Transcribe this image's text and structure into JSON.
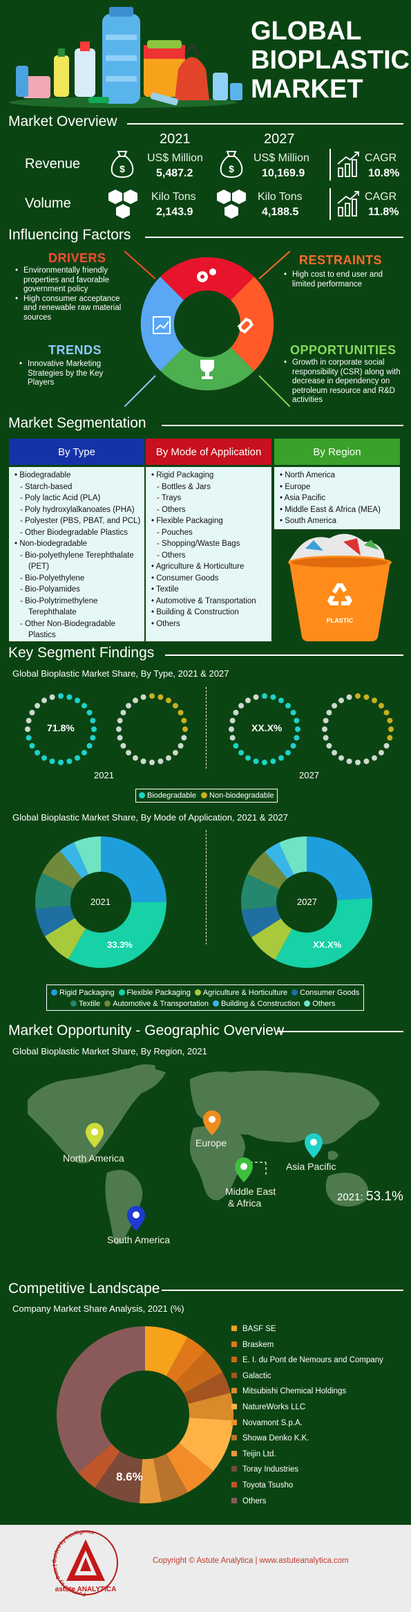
{
  "header": {
    "title_lines": [
      "GLOBAL",
      "BIOPLASTIC",
      "MARKET"
    ]
  },
  "overview": {
    "title": "Market Overview",
    "year1": "2021",
    "year2": "2027",
    "revenue": {
      "label": "Revenue",
      "unit1": "US$ Million",
      "val1": "5,487.2",
      "unit2": "US$ Million",
      "val2": "10,169.9",
      "cagr_label": "CAGR",
      "cagr": "10.8%"
    },
    "volume": {
      "label": "Volume",
      "unit1": "Kilo Tons",
      "val1": "2,143.9",
      "unit2": "Kilo Tons",
      "val2": "4,188.5",
      "cagr_label": "CAGR",
      "cagr": "11.8%"
    }
  },
  "factors": {
    "title": "Influencing Factors",
    "drivers": {
      "head": "DRIVERS",
      "items": [
        "Environmentally friendly properties and favorable government policy",
        "High consumer acceptance and renewable raw material sources"
      ]
    },
    "restraints": {
      "head": "RESTRAINTS",
      "items": [
        "High cost to end user and limited performance"
      ]
    },
    "trends": {
      "head": "TRENDS",
      "items": [
        "Innovative Marketing Strategies by the Key Players"
      ]
    },
    "opportunities": {
      "head": "OPPORTUNITIES",
      "items": [
        "Growth in corporate social responsibility (CSR) along with decrease in dependency on petroleum resource and R&D activities"
      ]
    }
  },
  "segmentation": {
    "title": "Market Segmentation",
    "by_type": {
      "head": "By Type",
      "items": [
        [
          "Biodegradable",
          0
        ],
        [
          "Starch-based",
          1
        ],
        [
          "Poly lactic Acid (PLA)",
          1
        ],
        [
          "Poly hydroxylalkanoates (PHA)",
          1
        ],
        [
          "Polyester (PBS, PBAT, and PCL)",
          1
        ],
        [
          "Other Biodegradable Plastics",
          1
        ],
        [
          "Non-biodegradable",
          0
        ],
        [
          "Bio-polyethylene Terephthalate",
          1
        ],
        [
          "(PET)",
          2
        ],
        [
          "Bio-Polyethylene",
          1
        ],
        [
          "Bio-Polyamides",
          1
        ],
        [
          "Bio-Polytrimethylene",
          1
        ],
        [
          "Terephthalate",
          2
        ],
        [
          "Other Non-Biodegradable",
          1
        ],
        [
          "Plastics",
          2
        ]
      ]
    },
    "by_application": {
      "head": "By Mode of Application",
      "items": [
        [
          "Rigid Packaging",
          0
        ],
        [
          "Bottles & Jars",
          1
        ],
        [
          "Trays",
          1
        ],
        [
          "Others",
          1
        ],
        [
          "Flexible Packaging",
          0
        ],
        [
          "Pouches",
          1
        ],
        [
          "Shopping/Waste Bags",
          1
        ],
        [
          "Others",
          1
        ],
        [
          "Agriculture & Horticulture",
          0
        ],
        [
          "Consumer Goods",
          0
        ],
        [
          "Textile",
          0
        ],
        [
          "Automotive & Transportation",
          0
        ],
        [
          "Building & Construction",
          0
        ],
        [
          "Others",
          0
        ]
      ]
    },
    "by_region": {
      "head": "By Region",
      "items": [
        [
          "North America",
          0
        ],
        [
          "Europe",
          0
        ],
        [
          "Asia Pacific",
          0
        ],
        [
          "Middle East & Africa (MEA)",
          0
        ],
        [
          "South America",
          0
        ]
      ]
    },
    "bin_label": "PLASTIC"
  },
  "findings": {
    "title": "Key Segment Findings",
    "type_subtitle": "Global Bioplastic Market Share, By Type, 2021 & 2027",
    "type_2021_label": "71.8%",
    "type_2027_label": "XX.X%",
    "year1": "2021",
    "year2": "2027",
    "type_legend": [
      "Biodegradable",
      "Non-biodegradable"
    ],
    "app_subtitle": "Global Bioplastic Market Share, By Mode of Application, 2021 & 2027",
    "app_2021_center": "2021",
    "app_2027_center": "2027",
    "app_2021_label": "33.3%",
    "app_2027_label": "XX.X%",
    "app_legend": [
      "Rigid Packaging",
      "Flexible Packaging",
      "Agriculture & Horticulture",
      "Consumer Goods",
      "Textile",
      "Automotive & Transportation",
      "Building & Construction",
      "Others"
    ]
  },
  "geo": {
    "title": "Market Opportunity - Geographic Overview",
    "subtitle": "Global Bioplastic Market Share, By Region, 2021",
    "regions": [
      "North America",
      "Europe",
      "Asia Pacific",
      "Middle East",
      "& Africa",
      "South America"
    ],
    "highlight_year": "2021:",
    "highlight_value": "53.1%"
  },
  "competition": {
    "title": "Competitive Landscape",
    "subtitle": "Company Market Share Analysis, 2021 (%)",
    "center_label": "8.6%",
    "companies": [
      "BASF SE",
      "Braskem",
      "E. I. du Pont de Nemours and Company",
      "Galactic",
      "Mitsubishi Chemical Holdings",
      "NatureWorks LLC",
      "Novamont S.p.A.",
      "Showa Denko K.K.",
      "Teijin Ltd.",
      "Toray Industries",
      "Toyota Tsusho",
      "Others"
    ]
  },
  "footer": {
    "copyright": "Copyright © Astute Analytica | www.astuteanalytica.com",
    "logo_text": "astute ANALYTICA",
    "ring_text": "Powered by Data | Guided by Intelligence"
  },
  "chart_data": [
    {
      "type": "pie",
      "title": "Global Bioplastic Market Share, By Type, 2021",
      "categories": [
        "Biodegradable",
        "Non-biodegradable"
      ],
      "values": [
        71.8,
        28.2
      ]
    },
    {
      "type": "pie",
      "title": "Global Bioplastic Market Share, By Mode of Application, 2021",
      "categories": [
        "Rigid Packaging",
        "Flexible Packaging",
        "Agriculture & Horticulture",
        "Consumer Goods",
        "Textile",
        "Automotive & Transportation",
        "Building & Construction",
        "Others"
      ],
      "values": [
        25,
        33.3,
        8,
        7,
        9,
        7,
        4,
        6.7
      ]
    },
    {
      "type": "pie",
      "title": "Company Market Share Analysis, 2021 (%)",
      "categories": [
        "BASF SE",
        "Braskem",
        "E. I. du Pont de Nemours and Company",
        "Galactic",
        "Mitsubishi Chemical Holdings",
        "NatureWorks LLC",
        "Novamont S.p.A.",
        "Showa Denko K.K.",
        "Teijin Ltd.",
        "Toray Industries",
        "Toyota Tsusho",
        "Others"
      ],
      "values": [
        8,
        4,
        5,
        4,
        5,
        10,
        6,
        5,
        4,
        8.6,
        4,
        36.4
      ]
    }
  ],
  "colors": {
    "bg": "#0b4413",
    "by_type": "#1533a8",
    "by_application": "#c8101e",
    "by_region": "#3aa12a",
    "drivers": "#ff4a33",
    "restraints": "#ff6b2a",
    "trends": "#8fc9ff",
    "opportunities": "#86d95c"
  }
}
